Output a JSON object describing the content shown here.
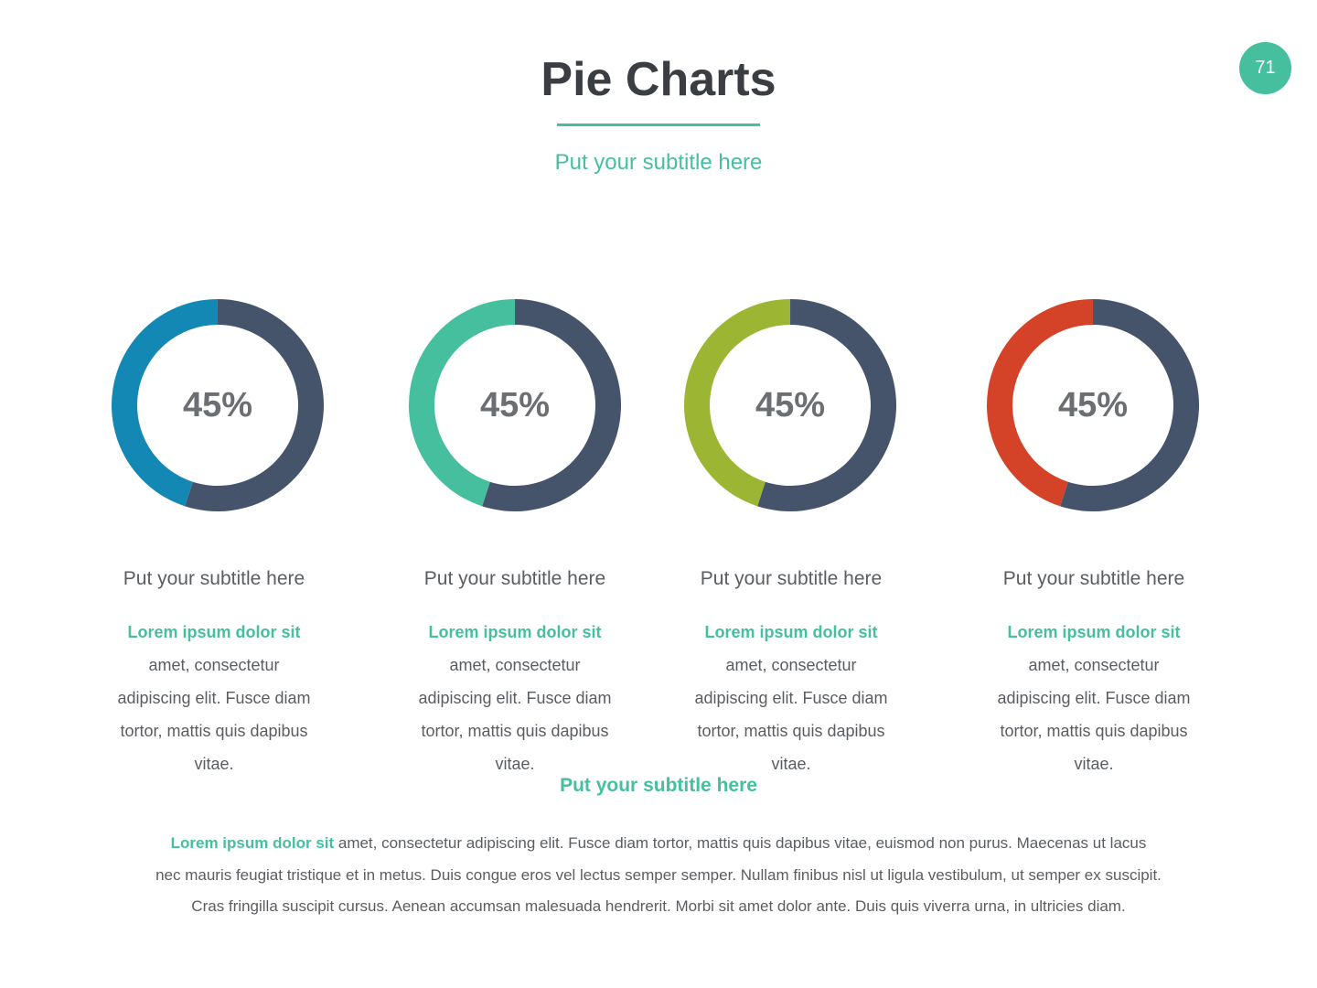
{
  "header": {
    "title": "Pie Charts",
    "subtitle": "Put your subtitle here",
    "page_number": "71"
  },
  "chart_data": [
    {
      "type": "pie",
      "label": "45%",
      "value": 45,
      "accent_color": "#1488b5",
      "track_color": "#45546b",
      "subtitle": "Put your subtitle here",
      "body_accent": "Lorem ipsum dolor sit",
      "body_lines": [
        "amet, consectetur",
        "adipiscing elit. Fusce diam",
        "tortor, mattis quis dapibus",
        "vitae."
      ]
    },
    {
      "type": "pie",
      "label": "45%",
      "value": 45,
      "accent_color": "#45bf9e",
      "track_color": "#45546b",
      "subtitle": "Put your subtitle here",
      "body_accent": "Lorem ipsum dolor sit",
      "body_lines": [
        "amet, consectetur",
        "adipiscing elit. Fusce diam",
        "tortor, mattis quis dapibus",
        "vitae."
      ]
    },
    {
      "type": "pie",
      "label": "45%",
      "value": 45,
      "accent_color": "#9cb532",
      "track_color": "#45546b",
      "subtitle": "Put your subtitle here",
      "body_accent": "Lorem ipsum dolor sit",
      "body_lines": [
        "amet, consectetur",
        "adipiscing elit. Fusce diam",
        "tortor, mattis quis dapibus",
        "vitae."
      ]
    },
    {
      "type": "pie",
      "label": "45%",
      "value": 45,
      "accent_color": "#d44227",
      "track_color": "#45546b",
      "subtitle": "Put your subtitle here",
      "body_accent": "Lorem ipsum dolor sit",
      "body_lines": [
        "amet, consectetur",
        "adipiscing elit. Fusce diam",
        "tortor, mattis quis dapibus",
        "vitae."
      ]
    }
  ],
  "footer": {
    "subtitle": "Put your subtitle here",
    "body_accent": "Lorem ipsum dolor sit",
    "body_lines": [
      " amet, consectetur adipiscing elit. Fusce diam tortor, mattis quis dapibus vitae, euismod non purus. Maecenas ut lacus",
      "nec mauris feugiat tristique et in metus. Duis congue eros vel lectus semper semper. Nullam finibus nisl ut ligula vestibulum, ut semper ex suscipit.",
      "Cras fringilla suscipit cursus. Aenean accumsan malesuada hendrerit. Morbi sit amet dolor ante. Duis quis viverra urna, in ultricies diam."
    ]
  }
}
